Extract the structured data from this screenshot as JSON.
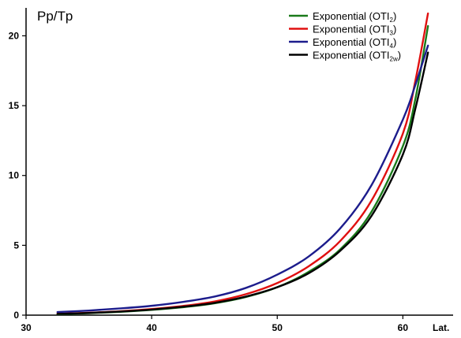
{
  "chart_data": {
    "type": "line",
    "title": "",
    "ylabel": "Pp/Tp",
    "xlabel": "Lat.",
    "xlim": [
      30,
      64
    ],
    "ylim": [
      0,
      22
    ],
    "x_ticks": [
      30,
      40,
      50,
      60
    ],
    "y_ticks": [
      0,
      5,
      10,
      15,
      20
    ],
    "grid": false,
    "legend_position": "top-right",
    "series": [
      {
        "name": "Exponential (OTI2)",
        "legend_base": "Exponential (OTI",
        "legend_sub": "2",
        "legend_tail": ")",
        "color": "#1a7a1a",
        "x": [
          32.5,
          35,
          37.5,
          40,
          42.5,
          45,
          47.5,
          50,
          52.5,
          55,
          57.5,
          60,
          61,
          62
        ],
        "y": [
          0.07,
          0.14,
          0.24,
          0.38,
          0.57,
          0.85,
          1.3,
          2.0,
          3.1,
          4.7,
          7.4,
          12.1,
          15.5,
          20.7
        ]
      },
      {
        "name": "Exponential (OTI3)",
        "legend_base": "Exponential (OTI",
        "legend_sub": "3",
        "legend_tail": ")",
        "color": "#e01010",
        "x": [
          32.5,
          35,
          37.5,
          40,
          42.5,
          45,
          47.5,
          50,
          52.5,
          55,
          57.5,
          60,
          61,
          62
        ],
        "y": [
          0.1,
          0.17,
          0.28,
          0.44,
          0.66,
          0.98,
          1.5,
          2.3,
          3.5,
          5.3,
          8.2,
          13.0,
          16.8,
          21.6
        ]
      },
      {
        "name": "Exponential (OTI4)",
        "legend_base": "Exponential (OTI",
        "legend_sub": "4",
        "legend_tail": ")",
        "color": "#1c1c8c",
        "x": [
          32.5,
          35,
          37.5,
          40,
          42.5,
          45,
          47.5,
          50,
          52.5,
          55,
          57.5,
          60,
          61,
          62
        ],
        "y": [
          0.22,
          0.33,
          0.48,
          0.67,
          0.95,
          1.33,
          1.95,
          2.9,
          4.2,
          6.2,
          9.3,
          14.0,
          16.5,
          19.3
        ]
      },
      {
        "name": "Exponential (OTI2w)",
        "legend_base": "Exponential (OTI",
        "legend_sub": "2w",
        "legend_tail": ")",
        "color": "#000000",
        "x": [
          32.5,
          35,
          37.5,
          40,
          42.5,
          45,
          47.5,
          50,
          52.5,
          55,
          57.5,
          60,
          61,
          62
        ],
        "y": [
          0.09,
          0.16,
          0.26,
          0.4,
          0.6,
          0.88,
          1.33,
          2.0,
          3.0,
          4.6,
          7.1,
          11.5,
          14.8,
          18.8
        ]
      }
    ]
  }
}
